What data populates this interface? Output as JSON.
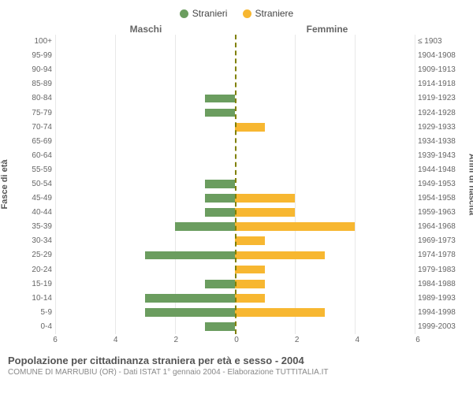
{
  "legend": {
    "male": {
      "label": "Stranieri",
      "color": "#6b9d5f"
    },
    "female": {
      "label": "Straniere",
      "color": "#f7b731"
    }
  },
  "headers": {
    "left": "Maschi",
    "right": "Femmine"
  },
  "axis_titles": {
    "left": "Fasce di età",
    "right": "Anni di nascita"
  },
  "x_axis": {
    "max": 6,
    "ticks_left": [
      6,
      4,
      2,
      0
    ],
    "ticks_right": [
      0,
      2,
      4,
      6
    ]
  },
  "grid": {
    "color": "#e8e8e8"
  },
  "divider_color": "#808000",
  "bar_style": {
    "male_color": "#6b9d5f",
    "female_color": "#f7b731"
  },
  "rows": [
    {
      "age": "100+",
      "birth": "≤ 1903",
      "m": 0,
      "f": 0
    },
    {
      "age": "95-99",
      "birth": "1904-1908",
      "m": 0,
      "f": 0
    },
    {
      "age": "90-94",
      "birth": "1909-1913",
      "m": 0,
      "f": 0
    },
    {
      "age": "85-89",
      "birth": "1914-1918",
      "m": 0,
      "f": 0
    },
    {
      "age": "80-84",
      "birth": "1919-1923",
      "m": 1,
      "f": 0
    },
    {
      "age": "75-79",
      "birth": "1924-1928",
      "m": 1,
      "f": 0
    },
    {
      "age": "70-74",
      "birth": "1929-1933",
      "m": 0,
      "f": 1
    },
    {
      "age": "65-69",
      "birth": "1934-1938",
      "m": 0,
      "f": 0
    },
    {
      "age": "60-64",
      "birth": "1939-1943",
      "m": 0,
      "f": 0
    },
    {
      "age": "55-59",
      "birth": "1944-1948",
      "m": 0,
      "f": 0
    },
    {
      "age": "50-54",
      "birth": "1949-1953",
      "m": 1,
      "f": 0
    },
    {
      "age": "45-49",
      "birth": "1954-1958",
      "m": 1,
      "f": 2
    },
    {
      "age": "40-44",
      "birth": "1959-1963",
      "m": 1,
      "f": 2
    },
    {
      "age": "35-39",
      "birth": "1964-1968",
      "m": 2,
      "f": 4
    },
    {
      "age": "30-34",
      "birth": "1969-1973",
      "m": 0,
      "f": 1
    },
    {
      "age": "25-29",
      "birth": "1974-1978",
      "m": 3,
      "f": 3
    },
    {
      "age": "20-24",
      "birth": "1979-1983",
      "m": 0,
      "f": 1
    },
    {
      "age": "15-19",
      "birth": "1984-1988",
      "m": 1,
      "f": 1
    },
    {
      "age": "10-14",
      "birth": "1989-1993",
      "m": 3,
      "f": 1
    },
    {
      "age": "5-9",
      "birth": "1994-1998",
      "m": 3,
      "f": 3
    },
    {
      "age": "0-4",
      "birth": "1999-2003",
      "m": 1,
      "f": 0
    }
  ],
  "footer": {
    "title": "Popolazione per cittadinanza straniera per età e sesso - 2004",
    "subtitle": "COMUNE DI MARRUBIU (OR) - Dati ISTAT 1° gennaio 2004 - Elaborazione TUTTITALIA.IT"
  }
}
